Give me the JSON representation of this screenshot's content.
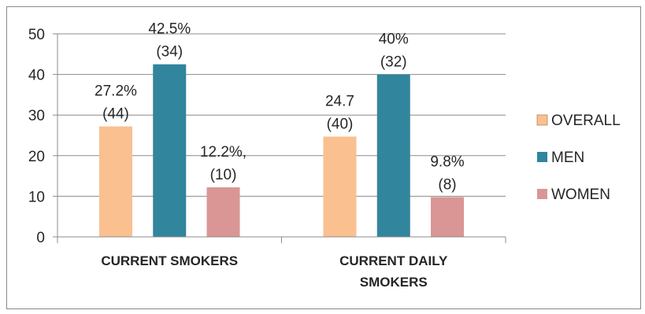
{
  "chart_data": {
    "type": "bar",
    "categories": [
      [
        "CURRENT SMOKERS"
      ],
      [
        "CURRENT DAILY",
        "SMOKERS"
      ]
    ],
    "series": [
      {
        "name": "OVERALL",
        "color": "#FAC090",
        "values": [
          27.2,
          24.7
        ],
        "labels": [
          [
            "27.2%",
            "(44)"
          ],
          [
            "24.7",
            "(40)"
          ]
        ]
      },
      {
        "name": "MEN",
        "color": "#31859C",
        "values": [
          42.5,
          40.0
        ],
        "labels": [
          [
            "42.5%",
            "(34)"
          ],
          [
            "40%",
            "(32)"
          ]
        ]
      },
      {
        "name": "WOMEN",
        "color": "#D99694",
        "values": [
          12.2,
          9.8
        ],
        "labels": [
          [
            "12.2%,",
            "(10)"
          ],
          [
            "9.8%",
            "(8)"
          ]
        ]
      }
    ],
    "ylim": [
      0,
      50
    ],
    "yticks": [
      0,
      10,
      20,
      30,
      40,
      50
    ],
    "grid": true,
    "legend": "right"
  }
}
